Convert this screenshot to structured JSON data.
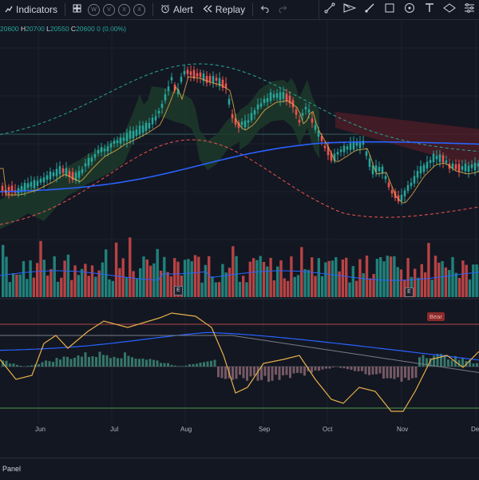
{
  "toolbar": {
    "indicators_label": "Indicators",
    "mini_buttons": [
      "W",
      "V",
      "X",
      "X"
    ],
    "alert_label": "Alert",
    "replay_label": "Replay"
  },
  "ohlc": {
    "o_value": "20600",
    "h_key": "H",
    "h_value": "20700",
    "l_key": "L",
    "l_value": "20550",
    "c_key": "C",
    "c_value": "20600",
    "change": "0 (0.00%)"
  },
  "chart": {
    "up_color": "#26a69a",
    "down_color": "#ef5350",
    "ma_color": "#2962ff",
    "kijun_color": "#e8b04a",
    "cloud_up_color": "#1d3a2a",
    "cloud_down_color": "#4a1c26",
    "envelope_up_color": "#26a69a",
    "envelope_down_color": "#ef5350",
    "earnings_badge": "E",
    "osc_label": "Bear",
    "x_axis_labels": [
      "Jun",
      "Jul",
      "Aug",
      "Sep",
      "Oct",
      "Nov",
      "De"
    ]
  },
  "bottom_panel": {
    "label": "Panel"
  }
}
